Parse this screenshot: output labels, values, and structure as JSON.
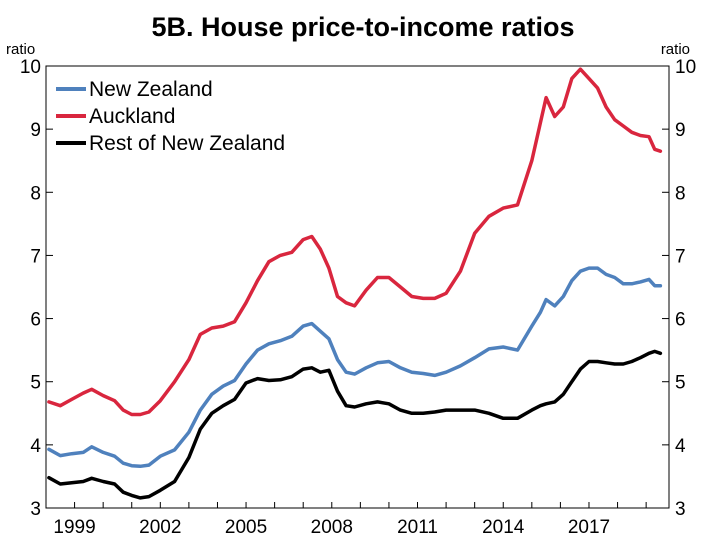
{
  "chart_data": {
    "type": "line",
    "title": "5B. House price-to-income ratios",
    "ylabel_left": "ratio",
    "ylabel_right": "ratio",
    "ylim": [
      3,
      10
    ],
    "yticks": [
      "3",
      "4",
      "5",
      "6",
      "7",
      "8",
      "9",
      "10"
    ],
    "xlim": [
      1998,
      2019.8
    ],
    "xticks": [
      {
        "x": 1999,
        "label": "1999"
      },
      {
        "x": 2002,
        "label": "2002"
      },
      {
        "x": 2005,
        "label": "2005"
      },
      {
        "x": 2008,
        "label": "2008"
      },
      {
        "x": 2011,
        "label": "2011"
      },
      {
        "x": 2014,
        "label": "2014"
      },
      {
        "x": 2017,
        "label": "2017"
      }
    ],
    "legend_position": "top-left",
    "grid": false,
    "series": [
      {
        "name": "New Zealand",
        "color": "#4f81bd",
        "points": [
          [
            1998.1,
            3.93
          ],
          [
            1998.5,
            3.83
          ],
          [
            1998.9,
            3.86
          ],
          [
            1999.3,
            3.88
          ],
          [
            1999.6,
            3.97
          ],
          [
            2000.0,
            3.88
          ],
          [
            2000.4,
            3.82
          ],
          [
            2000.7,
            3.71
          ],
          [
            2001.0,
            3.67
          ],
          [
            2001.3,
            3.66
          ],
          [
            2001.6,
            3.68
          ],
          [
            2002.0,
            3.82
          ],
          [
            2002.5,
            3.92
          ],
          [
            2003.0,
            4.2
          ],
          [
            2003.4,
            4.55
          ],
          [
            2003.8,
            4.8
          ],
          [
            2004.2,
            4.93
          ],
          [
            2004.6,
            5.02
          ],
          [
            2005.0,
            5.28
          ],
          [
            2005.4,
            5.5
          ],
          [
            2005.8,
            5.6
          ],
          [
            2006.2,
            5.65
          ],
          [
            2006.6,
            5.72
          ],
          [
            2007.0,
            5.88
          ],
          [
            2007.3,
            5.92
          ],
          [
            2007.6,
            5.8
          ],
          [
            2007.9,
            5.68
          ],
          [
            2008.2,
            5.35
          ],
          [
            2008.5,
            5.15
          ],
          [
            2008.8,
            5.12
          ],
          [
            2009.2,
            5.22
          ],
          [
            2009.6,
            5.3
          ],
          [
            2010.0,
            5.32
          ],
          [
            2010.4,
            5.22
          ],
          [
            2010.8,
            5.15
          ],
          [
            2011.2,
            5.13
          ],
          [
            2011.6,
            5.1
          ],
          [
            2012.0,
            5.15
          ],
          [
            2012.5,
            5.25
          ],
          [
            2013.0,
            5.38
          ],
          [
            2013.5,
            5.52
          ],
          [
            2014.0,
            5.55
          ],
          [
            2014.5,
            5.5
          ],
          [
            2015.0,
            5.88
          ],
          [
            2015.3,
            6.1
          ],
          [
            2015.5,
            6.3
          ],
          [
            2015.8,
            6.2
          ],
          [
            2016.1,
            6.35
          ],
          [
            2016.4,
            6.6
          ],
          [
            2016.7,
            6.75
          ],
          [
            2017.0,
            6.8
          ],
          [
            2017.3,
            6.8
          ],
          [
            2017.6,
            6.7
          ],
          [
            2017.9,
            6.65
          ],
          [
            2018.2,
            6.55
          ],
          [
            2018.5,
            6.55
          ],
          [
            2018.8,
            6.58
          ],
          [
            2019.1,
            6.62
          ],
          [
            2019.3,
            6.52
          ],
          [
            2019.5,
            6.52
          ]
        ]
      },
      {
        "name": "Auckland",
        "color": "#d9263e",
        "points": [
          [
            1998.1,
            4.68
          ],
          [
            1998.5,
            4.62
          ],
          [
            1998.9,
            4.72
          ],
          [
            1999.3,
            4.82
          ],
          [
            1999.6,
            4.88
          ],
          [
            2000.0,
            4.78
          ],
          [
            2000.4,
            4.7
          ],
          [
            2000.7,
            4.55
          ],
          [
            2001.0,
            4.48
          ],
          [
            2001.3,
            4.48
          ],
          [
            2001.6,
            4.52
          ],
          [
            2002.0,
            4.7
          ],
          [
            2002.5,
            5.0
          ],
          [
            2003.0,
            5.35
          ],
          [
            2003.4,
            5.75
          ],
          [
            2003.8,
            5.85
          ],
          [
            2004.2,
            5.88
          ],
          [
            2004.6,
            5.95
          ],
          [
            2005.0,
            6.25
          ],
          [
            2005.4,
            6.6
          ],
          [
            2005.8,
            6.9
          ],
          [
            2006.2,
            7.0
          ],
          [
            2006.6,
            7.05
          ],
          [
            2007.0,
            7.25
          ],
          [
            2007.3,
            7.3
          ],
          [
            2007.6,
            7.1
          ],
          [
            2007.9,
            6.8
          ],
          [
            2008.2,
            6.35
          ],
          [
            2008.5,
            6.25
          ],
          [
            2008.8,
            6.2
          ],
          [
            2009.2,
            6.45
          ],
          [
            2009.6,
            6.65
          ],
          [
            2010.0,
            6.65
          ],
          [
            2010.4,
            6.5
          ],
          [
            2010.8,
            6.35
          ],
          [
            2011.2,
            6.32
          ],
          [
            2011.6,
            6.32
          ],
          [
            2012.0,
            6.4
          ],
          [
            2012.5,
            6.75
          ],
          [
            2013.0,
            7.35
          ],
          [
            2013.5,
            7.62
          ],
          [
            2014.0,
            7.75
          ],
          [
            2014.5,
            7.8
          ],
          [
            2015.0,
            8.5
          ],
          [
            2015.3,
            9.1
          ],
          [
            2015.5,
            9.5
          ],
          [
            2015.8,
            9.2
          ],
          [
            2016.1,
            9.35
          ],
          [
            2016.4,
            9.8
          ],
          [
            2016.7,
            9.95
          ],
          [
            2017.0,
            9.8
          ],
          [
            2017.3,
            9.65
          ],
          [
            2017.6,
            9.35
          ],
          [
            2017.9,
            9.15
          ],
          [
            2018.2,
            9.05
          ],
          [
            2018.5,
            8.95
          ],
          [
            2018.8,
            8.9
          ],
          [
            2019.1,
            8.88
          ],
          [
            2019.3,
            8.68
          ],
          [
            2019.5,
            8.65
          ]
        ]
      },
      {
        "name": "Rest of New Zealand",
        "color": "#000000",
        "points": [
          [
            1998.1,
            3.48
          ],
          [
            1998.5,
            3.38
          ],
          [
            1998.9,
            3.4
          ],
          [
            1999.3,
            3.42
          ],
          [
            1999.6,
            3.47
          ],
          [
            2000.0,
            3.42
          ],
          [
            2000.4,
            3.38
          ],
          [
            2000.7,
            3.25
          ],
          [
            2001.0,
            3.2
          ],
          [
            2001.3,
            3.16
          ],
          [
            2001.6,
            3.18
          ],
          [
            2002.0,
            3.28
          ],
          [
            2002.5,
            3.42
          ],
          [
            2003.0,
            3.8
          ],
          [
            2003.4,
            4.25
          ],
          [
            2003.8,
            4.5
          ],
          [
            2004.2,
            4.62
          ],
          [
            2004.6,
            4.72
          ],
          [
            2005.0,
            4.98
          ],
          [
            2005.4,
            5.05
          ],
          [
            2005.8,
            5.02
          ],
          [
            2006.2,
            5.03
          ],
          [
            2006.6,
            5.08
          ],
          [
            2007.0,
            5.2
          ],
          [
            2007.3,
            5.22
          ],
          [
            2007.6,
            5.15
          ],
          [
            2007.9,
            5.18
          ],
          [
            2008.2,
            4.85
          ],
          [
            2008.5,
            4.62
          ],
          [
            2008.8,
            4.6
          ],
          [
            2009.2,
            4.65
          ],
          [
            2009.6,
            4.68
          ],
          [
            2010.0,
            4.65
          ],
          [
            2010.4,
            4.55
          ],
          [
            2010.8,
            4.5
          ],
          [
            2011.2,
            4.5
          ],
          [
            2011.6,
            4.52
          ],
          [
            2012.0,
            4.55
          ],
          [
            2012.5,
            4.55
          ],
          [
            2013.0,
            4.55
          ],
          [
            2013.5,
            4.5
          ],
          [
            2014.0,
            4.42
          ],
          [
            2014.5,
            4.42
          ],
          [
            2015.0,
            4.55
          ],
          [
            2015.3,
            4.62
          ],
          [
            2015.5,
            4.65
          ],
          [
            2015.8,
            4.68
          ],
          [
            2016.1,
            4.8
          ],
          [
            2016.4,
            5.0
          ],
          [
            2016.7,
            5.2
          ],
          [
            2017.0,
            5.32
          ],
          [
            2017.3,
            5.32
          ],
          [
            2017.6,
            5.3
          ],
          [
            2017.9,
            5.28
          ],
          [
            2018.2,
            5.28
          ],
          [
            2018.5,
            5.32
          ],
          [
            2018.8,
            5.38
          ],
          [
            2019.1,
            5.45
          ],
          [
            2019.3,
            5.48
          ],
          [
            2019.5,
            5.45
          ]
        ]
      }
    ]
  }
}
